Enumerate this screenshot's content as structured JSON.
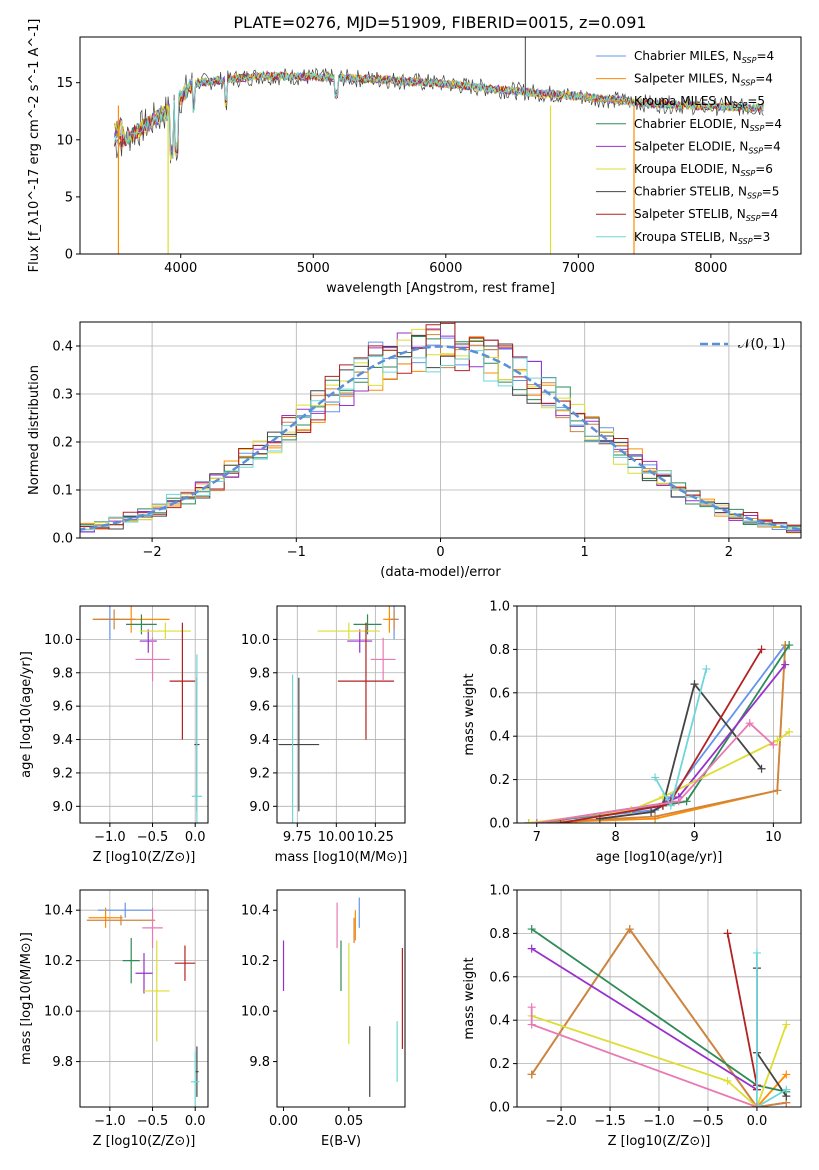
{
  "figure_title": "PLATE=0276, MJD=51909, FIBERID=0015, z=0.091",
  "series_styles": [
    {
      "name": "Chabrier MILES, N_SSP=4",
      "color": "#6495ed"
    },
    {
      "name": "Salpeter MILES, N_SSP=4",
      "color": "#ff8c00"
    },
    {
      "name": "Kroupa MILES, N_SSP=5",
      "color": "#cd853f"
    },
    {
      "name": "Chabrier ELODIE, N_SSP=4",
      "color": "#2e8b57"
    },
    {
      "name": "Salpeter ELODIE, N_SSP=4",
      "color": "#9932cc"
    },
    {
      "name": "Kroupa ELODIE, N_SSP=6",
      "color": "#dddd33"
    },
    {
      "name": "Chabrier STELIB, N_SSP=5",
      "color": "#444444"
    },
    {
      "name": "Salpeter STELIB, N_SSP=4",
      "color": "#b22222"
    },
    {
      "name": "Kroupa STELIB, N_SSP=3",
      "color": "#6fd6da"
    }
  ],
  "chart_data": [
    {
      "id": "spectrum",
      "type": "line",
      "title": "PLATE=0276, MJD=51909, FIBERID=0015, z=0.091",
      "xlabel": "wavelength [Angstrom, rest frame]",
      "ylabel": "Flux [f_λ10^-17 erg cm^-2 s^-1 A^-1]",
      "xlim": [
        3240,
        8680
      ],
      "ylim": [
        0,
        19
      ],
      "xticks": [
        4000,
        5000,
        6000,
        7000,
        8000
      ],
      "yticks": [
        0,
        5,
        10,
        15
      ],
      "grid": false,
      "legend": [
        "Chabrier MILES, N_SSP=4",
        "Salpeter MILES, N_SSP=4",
        "Kroupa MILES, N_SSP=5",
        "Chabrier ELODIE, N_SSP=4",
        "Salpeter ELODIE, N_SSP=4",
        "Kroupa ELODIE, N_SSP=6",
        "Chabrier STELIB, N_SSP=5",
        "Salpeter STELIB, N_SSP=4",
        "Kroupa STELIB, N_SSP=3"
      ],
      "legend_position": "right",
      "continuum": {
        "x": [
          3500,
          3700,
          3900,
          4100,
          4300,
          4600,
          5000,
          5500,
          6000,
          6500,
          7000,
          7500,
          8000,
          8400
        ],
        "y": [
          9.5,
          11,
          12.5,
          15,
          15.2,
          15.6,
          15.5,
          15.3,
          14.9,
          14.3,
          13.8,
          13.2,
          12.9,
          12.8
        ]
      }
    },
    {
      "id": "residuals",
      "type": "line",
      "xlabel": "(data-model)/error",
      "ylabel": "Normed distribution",
      "xlim": [
        -2.5,
        2.5
      ],
      "ylim": [
        0,
        0.45
      ],
      "xticks": [
        -2,
        -1,
        0,
        1,
        2
      ],
      "yticks": [
        0.0,
        0.1,
        0.2,
        0.3,
        0.4
      ],
      "grid": true,
      "legend": [
        "𝒩(0, 1)"
      ],
      "legend_position": "top-right",
      "reference_curve": "normal(0,1)",
      "bin_width": 0.1
    },
    {
      "id": "age_vs_Z",
      "type": "scatter",
      "xlabel": "Z [log10(Z/Z⊙)]",
      "ylabel": "age [log10(age/yr)]",
      "xlim": [
        -1.35,
        0.15
      ],
      "ylim": [
        8.9,
        10.2
      ],
      "xticks": [
        -1.0,
        -0.5,
        0.0
      ],
      "yticks": [
        9.0,
        9.2,
        9.4,
        9.6,
        9.8,
        10.0
      ],
      "grid": true,
      "points": [
        {
          "x": -1.0,
          "y": 10.12,
          "xerr": 0.12,
          "yerr": 0.12,
          "color": "#6495ed"
        },
        {
          "x": -0.75,
          "y": 10.12,
          "xerr": 0.45,
          "yerr": 0.08,
          "color": "#ff8c00"
        },
        {
          "x": -0.95,
          "y": 10.12,
          "xerr": 0.25,
          "yerr": 0.06,
          "color": "#cd853f"
        },
        {
          "x": -0.63,
          "y": 10.09,
          "xerr": 0.18,
          "yerr": 0.06,
          "color": "#2e8b57"
        },
        {
          "x": -0.55,
          "y": 9.99,
          "xerr": 0.1,
          "yerr": 0.07,
          "color": "#9932cc"
        },
        {
          "x": -0.35,
          "y": 10.05,
          "xerr": 0.3,
          "yerr": 0.05,
          "color": "#dddd33"
        },
        {
          "x": 0.02,
          "y": 9.37,
          "xerr": 0.03,
          "yerr": 0.4,
          "color": "#444444"
        },
        {
          "x": -0.15,
          "y": 9.75,
          "xerr": 0.15,
          "yerr": 0.35,
          "color": "#b22222"
        },
        {
          "x": 0.02,
          "y": 9.06,
          "xerr": 0.06,
          "yerr": 0.85,
          "color": "#6fd6da"
        },
        {
          "x": -0.5,
          "y": 9.88,
          "xerr": 0.2,
          "yerr": 0.13,
          "color": "#e879b3"
        }
      ]
    },
    {
      "id": "age_vs_mass",
      "type": "scatter",
      "xlabel": "mass [log10(M/M⊙)]",
      "ylabel": "",
      "xlim": [
        9.62,
        10.44
      ],
      "ylim": [
        8.9,
        10.2
      ],
      "xticks": [
        9.75,
        10.0,
        10.25
      ],
      "yticks": [
        9.0,
        9.2,
        9.4,
        9.6,
        9.8,
        10.0
      ],
      "grid": true,
      "points": [
        {
          "x": 10.37,
          "y": 10.12,
          "xerr": 0.03,
          "yerr": 0.12,
          "color": "#6495ed"
        },
        {
          "x": 10.34,
          "y": 10.12,
          "xerr": 0.04,
          "yerr": 0.08,
          "color": "#ff8c00"
        },
        {
          "x": 10.37,
          "y": 10.12,
          "xerr": 0.02,
          "yerr": 0.06,
          "color": "#cd853f"
        },
        {
          "x": 10.2,
          "y": 10.09,
          "xerr": 0.09,
          "yerr": 0.06,
          "color": "#2e8b57"
        },
        {
          "x": 10.15,
          "y": 9.99,
          "xerr": 0.08,
          "yerr": 0.07,
          "color": "#9932cc"
        },
        {
          "x": 10.08,
          "y": 10.05,
          "xerr": 0.2,
          "yerr": 0.05,
          "color": "#dddd33"
        },
        {
          "x": 9.76,
          "y": 9.37,
          "xerr": 0.13,
          "yerr": 0.4,
          "color": "#444444"
        },
        {
          "x": 10.19,
          "y": 9.75,
          "xerr": 0.18,
          "yerr": 0.35,
          "color": "#b22222"
        },
        {
          "x": 9.72,
          "y": 9.06,
          "xerr": 0.0,
          "yerr": 0.73,
          "color": "#6fd6da"
        },
        {
          "x": 10.3,
          "y": 9.88,
          "xerr": 0.08,
          "yerr": 0.13,
          "color": "#e879b3"
        }
      ]
    },
    {
      "id": "mass_weight_vs_age",
      "type": "line",
      "xlabel": "age [log10(age/yr)]",
      "ylabel": "mass weight",
      "xlim": [
        6.75,
        10.35
      ],
      "ylim": [
        0,
        1.0
      ],
      "xticks": [
        7,
        8,
        9,
        10
      ],
      "yticks": [
        0.0,
        0.2,
        0.4,
        0.6,
        0.8,
        1.0
      ],
      "grid": true,
      "series": [
        {
          "name": "Chabrier MILES, N_SSP=4",
          "x": [
            6.9,
            8.5,
            8.7,
            10.15
          ],
          "y": [
            0.0,
            0.06,
            0.12,
            0.82
          ]
        },
        {
          "name": "Salpeter MILES, N_SSP=4",
          "x": [
            6.9,
            8.5,
            10.05,
            10.15
          ],
          "y": [
            0.0,
            0.02,
            0.15,
            0.82
          ]
        },
        {
          "name": "Kroupa MILES, N_SSP=5",
          "x": [
            6.9,
            7.5,
            8.5,
            10.05,
            10.15
          ],
          "y": [
            0.0,
            0.01,
            0.03,
            0.15,
            0.82
          ]
        },
        {
          "name": "Chabrier ELODIE, N_SSP=4",
          "x": [
            7.0,
            8.6,
            8.9,
            10.2
          ],
          "y": [
            0.0,
            0.08,
            0.1,
            0.82
          ]
        },
        {
          "name": "Salpeter ELODIE, N_SSP=4",
          "x": [
            7.0,
            8.6,
            8.8,
            10.15
          ],
          "y": [
            0.0,
            0.09,
            0.12,
            0.73
          ]
        },
        {
          "name": "Kroupa ELODIE, N_SSP=6",
          "x": [
            6.9,
            8.2,
            8.6,
            10.05,
            10.2
          ],
          "y": [
            0.0,
            0.06,
            0.12,
            0.38,
            0.42
          ]
        },
        {
          "name": "Chabrier STELIB, N_SSP=5",
          "x": [
            7.8,
            8.45,
            8.6,
            9.0,
            9.85
          ],
          "y": [
            0.02,
            0.05,
            0.08,
            0.64,
            0.25
          ]
        },
        {
          "name": "Salpeter STELIB, N_SSP=4",
          "x": [
            7.3,
            8.6,
            8.7,
            9.85
          ],
          "y": [
            0.0,
            0.08,
            0.1,
            0.8
          ]
        },
        {
          "name": "Kroupa STELIB, N_SSP=3",
          "x": [
            8.5,
            8.7,
            9.15
          ],
          "y": [
            0.21,
            0.08,
            0.71
          ]
        },
        {
          "name": "",
          "x": [
            7.0,
            8.8,
            9.7,
            10.0
          ],
          "y": [
            0.0,
            0.1,
            0.46,
            0.36
          ]
        }
      ]
    },
    {
      "id": "mass_vs_Z",
      "type": "scatter",
      "xlabel": "Z [log10(Z/Z⊙)]",
      "ylabel": "mass [log10(M/M⊙)]",
      "xlim": [
        -1.35,
        0.15
      ],
      "ylim": [
        9.62,
        10.48
      ],
      "xticks": [
        -1.0,
        -0.5,
        0.0
      ],
      "yticks": [
        9.8,
        10.0,
        10.2,
        10.4
      ],
      "grid": true,
      "points": [
        {
          "x": -0.82,
          "y": 10.4,
          "xerr": 0.32,
          "yerr": 0.03,
          "color": "#6495ed"
        },
        {
          "x": -1.05,
          "y": 10.37,
          "xerr": 0.2,
          "yerr": 0.04,
          "color": "#ff8c00"
        },
        {
          "x": -0.87,
          "y": 10.36,
          "xerr": 0.4,
          "yerr": 0.02,
          "color": "#cd853f"
        },
        {
          "x": -0.75,
          "y": 10.2,
          "xerr": 0.1,
          "yerr": 0.09,
          "color": "#2e8b57"
        },
        {
          "x": -0.6,
          "y": 10.15,
          "xerr": 0.1,
          "yerr": 0.08,
          "color": "#9932cc"
        },
        {
          "x": -0.45,
          "y": 10.08,
          "xerr": 0.15,
          "yerr": 0.2,
          "color": "#dddd33"
        },
        {
          "x": 0.02,
          "y": 9.76,
          "xerr": 0.02,
          "yerr": 0.1,
          "color": "#444444"
        },
        {
          "x": -0.12,
          "y": 10.19,
          "xerr": 0.12,
          "yerr": 0.07,
          "color": "#b22222"
        },
        {
          "x": 0.0,
          "y": 9.72,
          "xerr": 0.05,
          "yerr": 0.12,
          "color": "#6fd6da"
        },
        {
          "x": -0.5,
          "y": 10.33,
          "xerr": 0.12,
          "yerr": 0.08,
          "color": "#e879b3"
        }
      ]
    },
    {
      "id": "mass_vs_EBV",
      "type": "scatter",
      "xlabel": "E(B-V)",
      "ylabel": "",
      "xlim": [
        -0.005,
        0.093
      ],
      "ylim": [
        9.62,
        10.48
      ],
      "xticks": [
        0.0,
        0.05
      ],
      "yticks": [
        9.8,
        10.0,
        10.2,
        10.4
      ],
      "grid": false,
      "points": [
        {
          "x": 0.058,
          "y": 10.39,
          "yerr": 0.06,
          "color": "#6495ed"
        },
        {
          "x": 0.055,
          "y": 10.34,
          "yerr": 0.06,
          "color": "#ff8c00"
        },
        {
          "x": 0.054,
          "y": 10.32,
          "yerr": 0.05,
          "color": "#cd853f"
        },
        {
          "x": 0.044,
          "y": 10.18,
          "yerr": 0.1,
          "color": "#2e8b57"
        },
        {
          "x": 0.0,
          "y": 10.18,
          "yerr": 0.1,
          "color": "#9932cc"
        },
        {
          "x": 0.05,
          "y": 10.07,
          "yerr": 0.2,
          "color": "#dddd33"
        },
        {
          "x": 0.066,
          "y": 9.8,
          "yerr": 0.14,
          "color": "#444444"
        },
        {
          "x": 0.091,
          "y": 10.05,
          "yerr": 0.2,
          "color": "#b22222"
        },
        {
          "x": 0.087,
          "y": 9.84,
          "yerr": 0.12,
          "color": "#6fd6da"
        },
        {
          "x": 0.041,
          "y": 10.34,
          "yerr": 0.09,
          "color": "#e879b3"
        }
      ]
    },
    {
      "id": "mass_weight_vs_Z",
      "type": "line",
      "xlabel": "Z [log10(Z/Z⊙)]",
      "ylabel": "mass weight",
      "xlim": [
        -2.45,
        0.45
      ],
      "ylim": [
        0,
        1.0
      ],
      "xticks": [
        -2.0,
        -1.5,
        -1.0,
        -0.5,
        0.0
      ],
      "yticks": [
        0.0,
        0.2,
        0.4,
        0.6,
        0.8,
        1.0
      ],
      "grid": true,
      "series": [
        {
          "name": "Chabrier MILES, N_SSP=4",
          "x": [
            -2.3,
            -1.3,
            0.0,
            0.3
          ],
          "y": [
            0.15,
            0.82,
            0.0,
            0.02
          ]
        },
        {
          "name": "Salpeter MILES, N_SSP=4",
          "x": [
            -2.3,
            -1.3,
            0.0,
            0.3
          ],
          "y": [
            0.15,
            0.82,
            0.0,
            0.15
          ]
        },
        {
          "name": "Kroupa MILES, N_SSP=5",
          "x": [
            -2.3,
            -1.3,
            0.0,
            0.3
          ],
          "y": [
            0.15,
            0.82,
            0.0,
            0.02
          ]
        },
        {
          "name": "Chabrier ELODIE, N_SSP=4",
          "x": [
            -2.3,
            0.0,
            0.3
          ],
          "y": [
            0.82,
            0.1,
            0.07
          ]
        },
        {
          "name": "Salpeter ELODIE, N_SSP=4",
          "x": [
            -2.3,
            0.0,
            0.0
          ],
          "y": [
            0.73,
            0.08,
            0.1
          ]
        },
        {
          "name": "Kroupa ELODIE, N_SSP=6",
          "x": [
            -2.3,
            -0.3,
            0.0,
            0.3
          ],
          "y": [
            0.42,
            0.12,
            0.0,
            0.38
          ]
        },
        {
          "name": "Chabrier STELIB, N_SSP=5",
          "x": [
            0.0,
            0.0,
            0.3
          ],
          "y": [
            0.64,
            0.25,
            0.05
          ]
        },
        {
          "name": "Salpeter STELIB, N_SSP=4",
          "x": [
            -0.3,
            0.0,
            0.0
          ],
          "y": [
            0.8,
            0.1,
            0.08
          ]
        },
        {
          "name": "Kroupa STELIB, N_SSP=3",
          "x": [
            0.0,
            0.0,
            0.3
          ],
          "y": [
            0.71,
            0.0,
            0.08
          ]
        },
        {
          "name": "",
          "x": [
            -2.3,
            -2.3,
            0.0
          ],
          "y": [
            0.46,
            0.38,
            0.0
          ]
        }
      ]
    }
  ]
}
